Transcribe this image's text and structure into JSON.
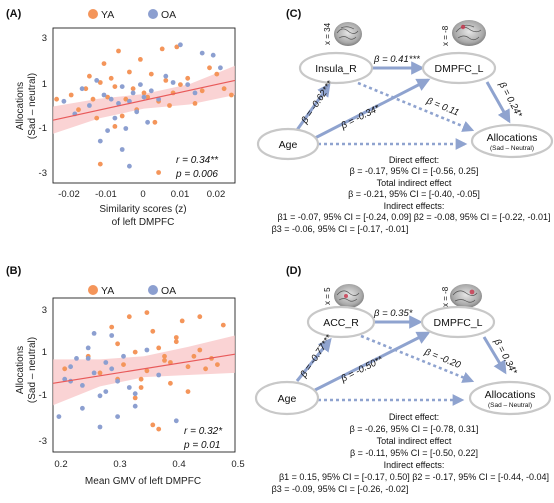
{
  "colors": {
    "ya": "#f4955a",
    "oa": "#8c9fd0",
    "fit": "#e85a5a",
    "band": "#f8c4c6",
    "arrow": "#8fa3cf"
  },
  "panelA": {
    "label": "(A)",
    "legend": {
      "ya": "YA",
      "oa": "OA"
    },
    "ylabel1": "Allocations",
    "ylabel2": "(Sad – neutral)",
    "xlabel1": "Similarity scores (z)",
    "xlabel2": "of left DMPFC",
    "xticks": [
      "-0.02",
      "-0.01",
      "0",
      "0.01",
      "0.02"
    ],
    "yticks": [
      "3",
      "1",
      "-1",
      "-3"
    ],
    "stat_r": "r = 0.34**",
    "stat_p": "p = 0.006",
    "chart_data": {
      "type": "scatter",
      "xlabel": "Similarity scores (z) of left DMPFC",
      "ylabel": "Allocations (Sad – neutral)",
      "xlim": [
        -0.025,
        0.025
      ],
      "ylim": [
        -3.7,
        3.7
      ],
      "fit": {
        "x": [
          -0.025,
          0.025
        ],
        "y": [
          -0.7,
          1.2
        ]
      },
      "band": {
        "x": [
          -0.025,
          -0.0125,
          0.0,
          0.0125,
          0.025
        ],
        "upper": [
          -0.05,
          0.32,
          0.55,
          1.02,
          1.9
        ],
        "lower": [
          -1.35,
          -0.62,
          -0.15,
          0.05,
          0.5
        ]
      },
      "series": [
        {
          "name": "YA",
          "x": [
            -0.024,
            -0.02,
            -0.018,
            -0.016,
            -0.015,
            -0.014,
            -0.013,
            -0.012,
            -0.011,
            -0.01,
            -0.009,
            -0.008,
            -0.008,
            -0.007,
            -0.006,
            -0.005,
            -0.004,
            -0.003,
            -0.002,
            -0.001,
            0,
            0.001,
            0.002,
            0.003,
            0.004,
            0.005,
            0.006,
            0.007,
            0.008,
            0.009,
            0.01,
            0.012,
            0.014,
            0.016,
            0.018,
            0.02,
            0.022,
            0.024,
            -0.012,
            0.004
          ],
          "y": [
            0.3,
            0.5,
            -0.2,
            0.8,
            1.4,
            0.3,
            -0.6,
            1.1,
            2.0,
            0.4,
            1.3,
            -1.0,
            0.9,
            2.6,
            -0.5,
            0.3,
            1.6,
            0.8,
            -0.2,
            2.2,
            0.6,
            0.4,
            1.5,
            -0.8,
            0.2,
            2.7,
            1.2,
            0.0,
            0.6,
            2.8,
            1.0,
            1.3,
            0.1,
            0.7,
            1.8,
            1.5,
            0.8,
            0.5,
            -2.8,
            -3.2
          ]
        },
        {
          "name": "OA",
          "x": [
            -0.022,
            -0.019,
            -0.017,
            -0.015,
            -0.013,
            -0.012,
            -0.011,
            -0.01,
            -0.009,
            -0.008,
            -0.007,
            -0.006,
            -0.005,
            -0.004,
            -0.003,
            -0.002,
            -0.001,
            0,
            0.001,
            0.002,
            0.004,
            0.006,
            0.008,
            0.01,
            0.012,
            0.014,
            0.016,
            0.019,
            0.021,
            -0.006,
            -0.004
          ],
          "y": [
            0.2,
            -0.4,
            0.8,
            0.0,
            1.2,
            -1.7,
            0.5,
            -1.2,
            0.3,
            -0.6,
            0.1,
            0.9,
            -1.1,
            0.2,
            0.6,
            -0.3,
            1.0,
            0.4,
            -0.8,
            0.7,
            0.3,
            1.4,
            1.1,
            2.9,
            1.0,
            0.6,
            2.5,
            2.4,
            1.8,
            -2.1,
            -2.9
          ]
        }
      ]
    }
  },
  "panelB": {
    "label": "(B)",
    "legend": {
      "ya": "YA",
      "oa": "OA"
    },
    "ylabel1": "Allocations",
    "ylabel2": "(Sad – neutral)",
    "xlabel": "Mean GMV of left DMPFC",
    "xticks": [
      "0.2",
      "0.3",
      "0.4",
      "0.5"
    ],
    "yticks": [
      "3",
      "1",
      "-1",
      "-3"
    ],
    "stat_r": "r = 0.32*",
    "stat_p": "p = 0.01",
    "chart_data": {
      "type": "scatter",
      "xlabel": "Mean GMV of left DMPFC",
      "ylabel": "Allocations (Sad – neutral)",
      "xlim": [
        0.19,
        0.5
      ],
      "ylim": [
        -3.7,
        3.7
      ],
      "fit": {
        "x": [
          0.19,
          0.5
        ],
        "y": [
          -0.4,
          1.0
        ]
      },
      "band": {
        "x": [
          0.19,
          0.27,
          0.345,
          0.42,
          0.5
        ],
        "upper": [
          0.75,
          0.75,
          0.9,
          1.35,
          1.9
        ],
        "lower": [
          -1.45,
          -0.55,
          -0.1,
          0.0,
          0.1
        ]
      },
      "series": [
        {
          "name": "YA",
          "x": [
            0.21,
            0.25,
            0.27,
            0.29,
            0.3,
            0.31,
            0.32,
            0.33,
            0.34,
            0.35,
            0.36,
            0.37,
            0.38,
            0.39,
            0.4,
            0.41,
            0.42,
            0.43,
            0.44,
            0.45,
            0.46,
            0.47,
            0.48,
            0.33,
            0.36,
            0.38,
            0.4,
            0.35,
            0.42,
            0.3,
            0.37,
            0.39,
            0.34,
            0.44
          ],
          "y": [
            0.3,
            0.9,
            0.1,
            2.3,
            -0.2,
            0.5,
            2.8,
            1.1,
            -0.6,
            0.2,
            2.1,
            1.3,
            0.7,
            -0.4,
            1.6,
            2.6,
            0.4,
            0.9,
            1.2,
            0.3,
            0.8,
            0.5,
            2.4,
            -1.1,
            -2.4,
            0.9,
            1.8,
            3.0,
            -0.8,
            1.5,
            -2.6,
            0.6,
            -0.2,
            2.8
          ]
        },
        {
          "name": "OA",
          "x": [
            0.2,
            0.21,
            0.22,
            0.23,
            0.24,
            0.25,
            0.26,
            0.27,
            0.28,
            0.29,
            0.3,
            0.31,
            0.32,
            0.33,
            0.35,
            0.37,
            0.4,
            0.24,
            0.26,
            0.28,
            0.29,
            0.22,
            0.25,
            0.27,
            0.3,
            0.33
          ],
          "y": [
            -2.0,
            -0.2,
            0.4,
            0.8,
            -0.5,
            1.3,
            0.1,
            -1.0,
            0.6,
            1.9,
            -0.3,
            0.9,
            -0.6,
            -1.5,
            1.2,
            0.0,
            -2.2,
            -1.6,
            2.0,
            -0.8,
            0.3,
            -0.3,
            0.8,
            -2.5,
            -2.0,
            -0.9
          ]
        }
      ]
    }
  },
  "panelC": {
    "label": "(C)",
    "coords": {
      "insula": "x = 34",
      "dmpfc": "x = -8"
    },
    "nodes": {
      "mediator": "Insula_R",
      "dmpfc": "DMPFC_L",
      "age": "Age",
      "out1": "Allocations",
      "out2": "(Sad – Neutral)"
    },
    "paths": {
      "age_med": "β = -0.62***",
      "med_dmpfc": "β = 0.41***",
      "dmpfc_out": "β = 0.24*",
      "age_dmpfc": "β = -0.34*",
      "med_out": "β = 0.11"
    },
    "footer": [
      "Direct effect:",
      "β = -0.17, 95% CI = [-0.56, 0.25]",
      "Total indirect effect",
      "β = -0.21, 95% CI = [-0.40, -0.05]",
      "Indirect effects:",
      "β1 = -0.07, 95% CI = [-0.24, 0.09]  β2 = -0.08, 95% CI = [-0.22, -0.01]",
      "β3 = -0.06, 95% CI = [-0.17, -0.01]"
    ]
  },
  "panelD": {
    "label": "(D)",
    "coords": {
      "acc": "x = 5",
      "dmpfc": "x = -8"
    },
    "nodes": {
      "mediator": "ACC_R",
      "dmpfc": "DMPFC_L",
      "age": "Age",
      "out1": "Allocations",
      "out2": "(Sad – Neutral)"
    },
    "paths": {
      "age_med": "β = -0.77***",
      "med_dmpfc": "β = 0.35*",
      "dmpfc_out": "β = 0.34*",
      "age_dmpfc": "β = -0.50**",
      "med_out": "β = -0.20"
    },
    "footer": [
      "Direct effect:",
      "β = -0.26, 95% CI = [-0.78, 0.31]",
      "Total indirect effect",
      "β = -0.11, 95% CI = [-0.50, 0.22]",
      "Indirect effects:",
      "β1 = 0.15, 95% CI = [-0.17, 0.50]  β2 = -0.17, 95% CI = [-0.44, -0.04]",
      "β3 = -0.09, 95% CI = [-0.26, -0.02]"
    ]
  }
}
